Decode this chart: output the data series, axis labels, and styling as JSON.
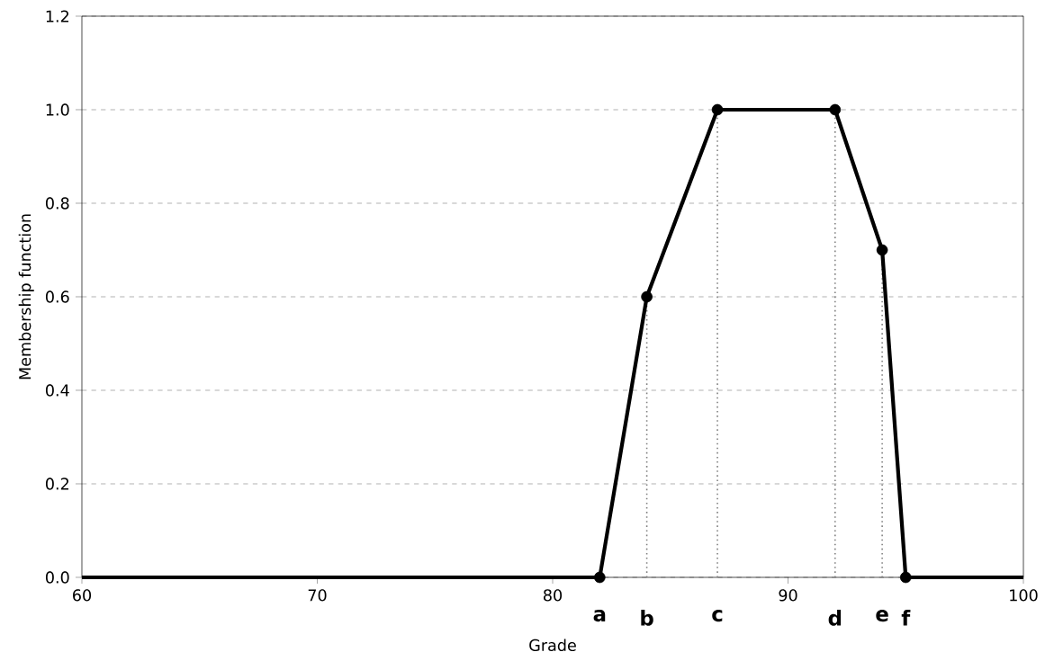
{
  "chart_data": {
    "type": "line",
    "xlabel": "Grade",
    "ylabel": "Membership function",
    "xlim": [
      60,
      100
    ],
    "ylim": [
      0,
      1.2
    ],
    "xticks": [
      60,
      70,
      80,
      90,
      100
    ],
    "yticks": [
      {
        "value": 0,
        "label": "0.0"
      },
      {
        "value": 0.2,
        "label": "0.2"
      },
      {
        "value": 0.4,
        "label": "0.4"
      },
      {
        "value": 0.6,
        "label": "0.6"
      },
      {
        "value": 0.8,
        "label": "0.8"
      },
      {
        "value": 1.0,
        "label": "1.0"
      },
      {
        "value": 1.2,
        "label": "1.2"
      }
    ],
    "grid": "y",
    "series": [
      {
        "type": "line",
        "color": "#000000",
        "marker": "none",
        "line_style": "solid",
        "x": [
          60,
          82,
          84,
          87,
          92,
          94,
          95,
          100
        ],
        "values": [
          0,
          0,
          0.6,
          1,
          1,
          0.7,
          0,
          0
        ]
      },
      {
        "type": "scatter",
        "color": "#000000",
        "marker": "circle",
        "x": [
          82,
          84,
          87,
          92,
          94,
          95
        ],
        "values": [
          0,
          0.6,
          1,
          1,
          0.7,
          0
        ]
      },
      {
        "type": "line",
        "color": "#808080",
        "marker": "none",
        "line_style": "dotted",
        "x": [
          84,
          84
        ],
        "values": [
          0,
          0.6
        ]
      },
      {
        "type": "line",
        "color": "#808080",
        "marker": "none",
        "line_style": "dotted",
        "x": [
          87,
          87
        ],
        "values": [
          0,
          1
        ]
      },
      {
        "type": "line",
        "color": "#808080",
        "marker": "none",
        "line_style": "dotted",
        "x": [
          92,
          92
        ],
        "values": [
          0,
          1
        ]
      },
      {
        "type": "line",
        "color": "#808080",
        "marker": "none",
        "line_style": "dotted",
        "x": [
          94,
          94
        ],
        "values": [
          0,
          0.7
        ]
      }
    ],
    "annotations": [
      {
        "text": "a",
        "x": 82,
        "y": 0
      },
      {
        "text": "b",
        "x": 84,
        "y": 0
      },
      {
        "text": "c",
        "x": 87,
        "y": 0
      },
      {
        "text": "d",
        "x": 92,
        "y": 0
      },
      {
        "text": "e",
        "x": 94,
        "y": 0
      },
      {
        "text": "f",
        "x": 95,
        "y": 0
      }
    ]
  }
}
